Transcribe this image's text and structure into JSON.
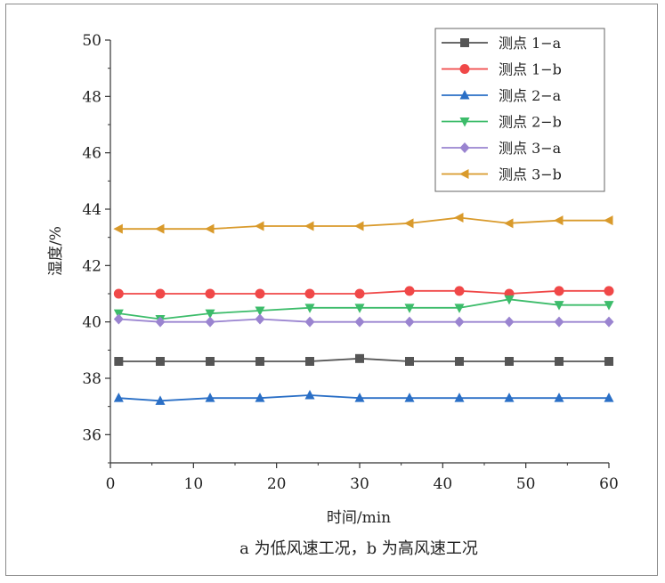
{
  "chart_data": {
    "type": "line",
    "title": "",
    "xlabel": "时间/min",
    "ylabel": "湿度/%",
    "caption": "a 为低风速工况，b 为高风速工况",
    "xlim": [
      0,
      60
    ],
    "ylim": [
      35,
      50
    ],
    "xticks": [
      0,
      10,
      20,
      30,
      40,
      50,
      60
    ],
    "yticks": [
      36,
      38,
      40,
      42,
      44,
      46,
      48,
      50
    ],
    "grid": false,
    "legend_position": "top-right",
    "x": [
      1,
      6,
      12,
      18,
      24,
      30,
      36,
      42,
      48,
      54,
      60
    ],
    "series": [
      {
        "name": "测点 1−a",
        "color": "#555555",
        "marker": "square",
        "values": [
          38.6,
          38.6,
          38.6,
          38.6,
          38.6,
          38.7,
          38.6,
          38.6,
          38.6,
          38.6,
          38.6
        ]
      },
      {
        "name": "测点 1−b",
        "color": "#f04848",
        "marker": "circle",
        "values": [
          41.0,
          41.0,
          41.0,
          41.0,
          41.0,
          41.0,
          41.1,
          41.1,
          41.0,
          41.1,
          41.1
        ]
      },
      {
        "name": "测点 2−a",
        "color": "#2a6fc6",
        "marker": "triangle-up",
        "values": [
          37.3,
          37.2,
          37.3,
          37.3,
          37.4,
          37.3,
          37.3,
          37.3,
          37.3,
          37.3,
          37.3
        ]
      },
      {
        "name": "测点 2−b",
        "color": "#3cbc6a",
        "marker": "triangle-down",
        "values": [
          40.3,
          40.1,
          40.3,
          40.4,
          40.5,
          40.5,
          40.5,
          40.5,
          40.8,
          40.6,
          40.6
        ]
      },
      {
        "name": "测点 3−a",
        "color": "#9a84d0",
        "marker": "diamond",
        "values": [
          40.1,
          40.0,
          40.0,
          40.1,
          40.0,
          40.0,
          40.0,
          40.0,
          40.0,
          40.0,
          40.0
        ]
      },
      {
        "name": "测点 3−b",
        "color": "#d99a2b",
        "marker": "triangle-left",
        "values": [
          43.3,
          43.3,
          43.3,
          43.4,
          43.4,
          43.4,
          43.5,
          43.7,
          43.5,
          43.6,
          43.6
        ]
      }
    ]
  }
}
